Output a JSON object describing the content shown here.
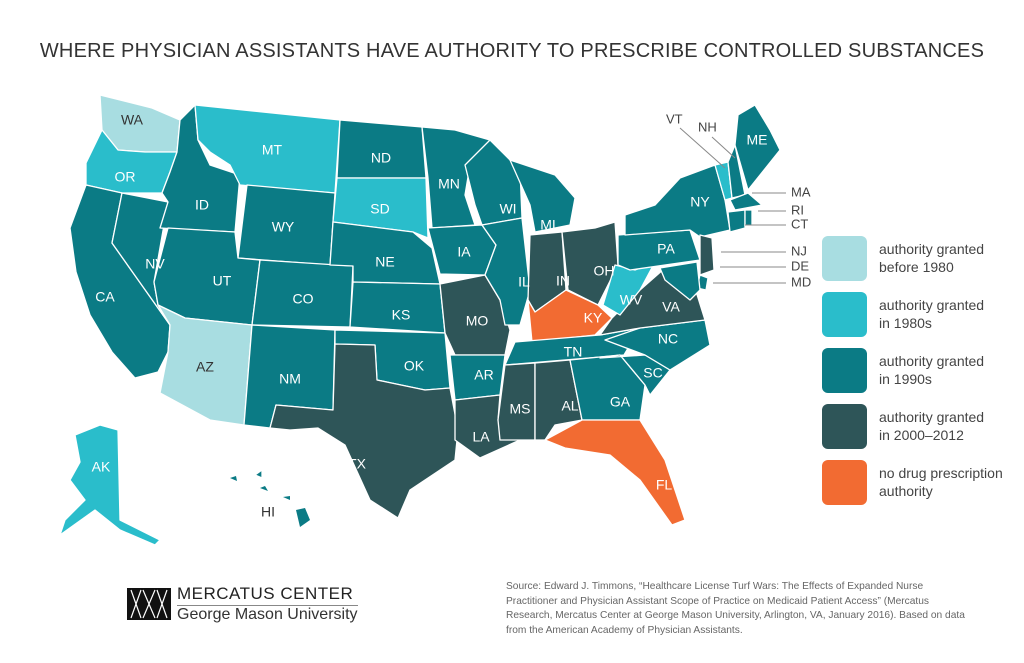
{
  "title": "WHERE PHYSICIAN ASSISTANTS HAVE AUTHORITY TO PRESCRIBE CONTROLLED SUBSTANCES",
  "colors": {
    "before_1980": "#a8dde1",
    "in_1980s": "#2abdcb",
    "in_1990s": "#0b7b85",
    "in_2000_2012": "#2e5558",
    "none": "#f26b32"
  },
  "legend": [
    {
      "key": "before_1980",
      "line1": "authority granted",
      "line2": "before 1980"
    },
    {
      "key": "in_1980s",
      "line1": "authority granted",
      "line2": "in 1980s"
    },
    {
      "key": "in_1990s",
      "line1": "authority granted",
      "line2": "in 1990s"
    },
    {
      "key": "in_2000_2012",
      "line1": "authority granted",
      "line2": "in 2000–2012"
    },
    {
      "key": "none",
      "line1": "no drug prescription",
      "line2": "authority"
    }
  ],
  "states": {
    "WA": "before_1980",
    "AZ": "before_1980",
    "OR": "in_1980s",
    "MT": "in_1980s",
    "SD": "in_1980s",
    "AK": "in_1980s",
    "VT": "in_1980s",
    "WV": "in_1980s",
    "CA": "in_1990s",
    "NV": "in_1990s",
    "ID": "in_1990s",
    "UT": "in_1990s",
    "WY": "in_1990s",
    "CO": "in_1990s",
    "NM": "in_1990s",
    "ND": "in_1990s",
    "NE": "in_1990s",
    "KS": "in_1990s",
    "OK": "in_1990s",
    "MN": "in_1990s",
    "IA": "in_1990s",
    "WI": "in_1990s",
    "IL": "in_1990s",
    "MI": "in_1990s",
    "AR": "in_1990s",
    "TN": "in_1990s",
    "NC": "in_1990s",
    "SC": "in_1990s",
    "GA": "in_1990s",
    "PA": "in_1990s",
    "NY": "in_1990s",
    "ME": "in_1990s",
    "NH": "in_1990s",
    "MA": "in_1990s",
    "RI": "in_1990s",
    "CT": "in_1990s",
    "MD": "in_1990s",
    "DE": "in_1990s",
    "HI": "in_1990s",
    "TX": "in_2000_2012",
    "MO": "in_2000_2012",
    "LA": "in_2000_2012",
    "MS": "in_2000_2012",
    "AL": "in_2000_2012",
    "IN": "in_2000_2012",
    "OH": "in_2000_2012",
    "VA": "in_2000_2012",
    "NJ": "in_2000_2012",
    "KY": "none",
    "FL": "none"
  },
  "logo": {
    "line1": "MERCATUS CENTER",
    "line2": "George Mason University"
  },
  "source": "Source: Edward J. Timmons, “Healthcare License Turf Wars: The Effects of Expanded Nurse Practitioner and Physician Assistant Scope of Practice on Medicaid Patient Access” (Mercatus Research, Mercatus Center at George Mason University, Arlington, VA, January 2016). Based on data from the American Academy of Physician Assistants."
}
